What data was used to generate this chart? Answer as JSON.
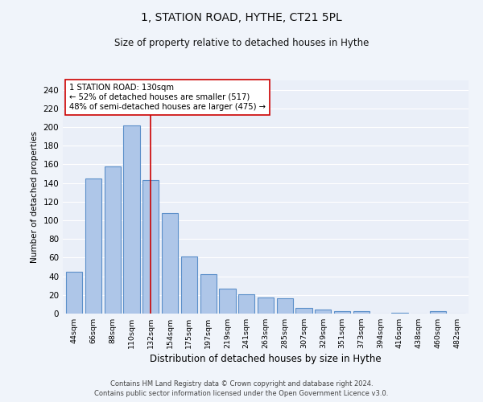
{
  "title": "1, STATION ROAD, HYTHE, CT21 5PL",
  "subtitle": "Size of property relative to detached houses in Hythe",
  "xlabel": "Distribution of detached houses by size in Hythe",
  "ylabel": "Number of detached properties",
  "bar_categories": [
    "44sqm",
    "66sqm",
    "88sqm",
    "110sqm",
    "132sqm",
    "154sqm",
    "175sqm",
    "197sqm",
    "219sqm",
    "241sqm",
    "263sqm",
    "285sqm",
    "307sqm",
    "329sqm",
    "351sqm",
    "373sqm",
    "394sqm",
    "416sqm",
    "438sqm",
    "460sqm",
    "482sqm"
  ],
  "bar_values": [
    45,
    145,
    158,
    202,
    143,
    108,
    61,
    42,
    27,
    21,
    17,
    16,
    6,
    4,
    3,
    3,
    0,
    1,
    0,
    3,
    0
  ],
  "bar_color": "#aec6e8",
  "bar_edge_color": "#5b8fc9",
  "bar_edge_width": 0.8,
  "bg_color": "#eaeff8",
  "grid_color": "#ffffff",
  "marker_index": 4,
  "marker_color": "#cc0000",
  "annotation_text": "1 STATION ROAD: 130sqm\n← 52% of detached houses are smaller (517)\n48% of semi-detached houses are larger (475) →",
  "annotation_box_color": "#ffffff",
  "annotation_box_edge": "#cc0000",
  "ylim": [
    0,
    250
  ],
  "yticks": [
    0,
    20,
    40,
    60,
    80,
    100,
    120,
    140,
    160,
    180,
    200,
    220,
    240
  ],
  "footer_line1": "Contains HM Land Registry data © Crown copyright and database right 2024.",
  "footer_line2": "Contains public sector information licensed under the Open Government Licence v3.0.",
  "fig_width": 6.0,
  "fig_height": 5.0,
  "dpi": 100
}
